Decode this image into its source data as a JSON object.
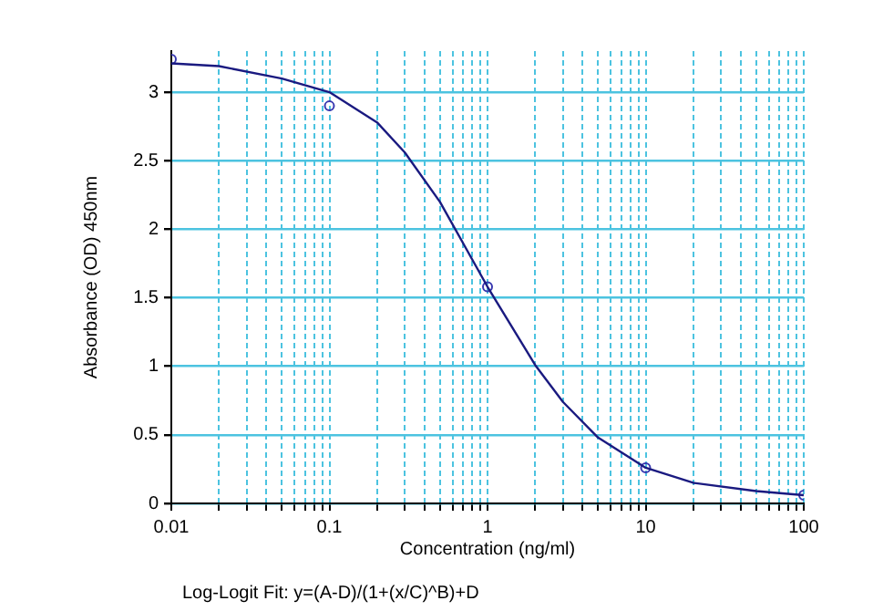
{
  "chart_data": {
    "type": "scatter",
    "xlabel": "Concentration (ng/ml)",
    "ylabel": "Absorbance (OD) 450nm",
    "annotations": [
      "Log-Logit Fit: y=(A-D)/(1+(x/C)^B)+D"
    ],
    "log": "x",
    "grid": true,
    "legend": false,
    "xlim": [
      0.01,
      100
    ],
    "ylim": [
      0,
      3.3
    ],
    "xticks": [
      0.01,
      {
        "value": 0.02,
        "label": null
      },
      {
        "value": 0.03,
        "label": null
      },
      {
        "value": 0.04,
        "label": null
      },
      {
        "value": 0.05,
        "label": null
      },
      {
        "value": 0.06,
        "label": null
      },
      {
        "value": 0.07,
        "label": null
      },
      {
        "value": 0.08,
        "label": null
      },
      {
        "value": 0.09,
        "label": null
      },
      0.1,
      {
        "value": 0.2,
        "label": null
      },
      {
        "value": 0.3,
        "label": null
      },
      {
        "value": 0.4,
        "label": null
      },
      {
        "value": 0.5,
        "label": null
      },
      {
        "value": 0.6,
        "label": null
      },
      {
        "value": 0.7,
        "label": null
      },
      {
        "value": 0.8,
        "label": null
      },
      {
        "value": 0.9,
        "label": null
      },
      1,
      {
        "value": 2,
        "label": null
      },
      {
        "value": 3,
        "label": null
      },
      {
        "value": 4,
        "label": null
      },
      {
        "value": 5,
        "label": null
      },
      {
        "value": 6,
        "label": null
      },
      {
        "value": 7,
        "label": null
      },
      {
        "value": 8,
        "label": null
      },
      {
        "value": 9,
        "label": null
      },
      10,
      {
        "value": 20,
        "label": null
      },
      {
        "value": 30,
        "label": null
      },
      {
        "value": 40,
        "label": null
      },
      {
        "value": 50,
        "label": null
      },
      {
        "value": 60,
        "label": null
      },
      {
        "value": 70,
        "label": null
      },
      {
        "value": 80,
        "label": null
      },
      {
        "value": 90,
        "label": null
      },
      100
    ],
    "yticks": [
      0,
      0.5,
      1,
      1.5,
      2,
      2.5,
      3
    ],
    "series": [
      {
        "type": "line",
        "marker": "none",
        "line_style": "solid",
        "color": "#1a1a80",
        "x": [
          0.01,
          0.02,
          0.05,
          0.1,
          0.2,
          0.3,
          0.5,
          1,
          2,
          3,
          5,
          10,
          20,
          50,
          100
        ],
        "values": [
          3.21,
          3.19,
          3.1,
          3.0,
          2.78,
          2.56,
          2.2,
          1.58,
          1.01,
          0.74,
          0.48,
          0.26,
          0.15,
          0.09,
          0.06
        ]
      },
      {
        "marker": "circle",
        "color": "#3838b0",
        "x": [
          0.01,
          0.1,
          1,
          10,
          100
        ],
        "values": [
          3.24,
          2.9,
          1.58,
          0.26,
          0.06
        ]
      }
    ]
  }
}
